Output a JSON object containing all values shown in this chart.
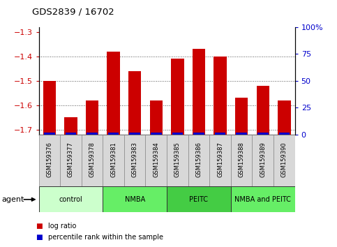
{
  "title": "GDS2839 / 16702",
  "samples": [
    "GSM159376",
    "GSM159377",
    "GSM159378",
    "GSM159381",
    "GSM159383",
    "GSM159384",
    "GSM159385",
    "GSM159386",
    "GSM159387",
    "GSM159388",
    "GSM159389",
    "GSM159390"
  ],
  "log_ratio": [
    -1.5,
    -1.65,
    -1.58,
    -1.38,
    -1.46,
    -1.58,
    -1.41,
    -1.37,
    -1.4,
    -1.57,
    -1.52,
    -1.58
  ],
  "percentile_rank": [
    2,
    2,
    2,
    2,
    2,
    2,
    2,
    2,
    2,
    2,
    2,
    2
  ],
  "bar_color": "#cc0000",
  "pct_bar_color": "#0000cc",
  "ylim_left": [
    -1.72,
    -1.28
  ],
  "ylim_right": [
    0,
    100
  ],
  "yticks_left": [
    -1.7,
    -1.6,
    -1.5,
    -1.4,
    -1.3
  ],
  "yticks_right": [
    0,
    25,
    50,
    75,
    100
  ],
  "ytick_labels_right": [
    "0",
    "25",
    "50",
    "75",
    "100%"
  ],
  "groups": [
    {
      "label": "control",
      "start": 0,
      "end": 3,
      "color": "#ccffcc"
    },
    {
      "label": "NMBA",
      "start": 3,
      "end": 6,
      "color": "#66ee66"
    },
    {
      "label": "PEITC",
      "start": 6,
      "end": 9,
      "color": "#44cc44"
    },
    {
      "label": "NMBA and PEITC",
      "start": 9,
      "end": 12,
      "color": "#66ee66"
    }
  ],
  "agent_label": "agent",
  "legend_items": [
    {
      "label": "log ratio",
      "color": "#cc0000"
    },
    {
      "label": "percentile rank within the sample",
      "color": "#0000cc"
    }
  ],
  "dotted_line_color": "#555555",
  "tick_label_color_left": "#cc0000",
  "tick_label_color_right": "#0000cc",
  "group_colors": [
    "#ccffcc",
    "#66ee66",
    "#44cc44",
    "#66ee66"
  ]
}
